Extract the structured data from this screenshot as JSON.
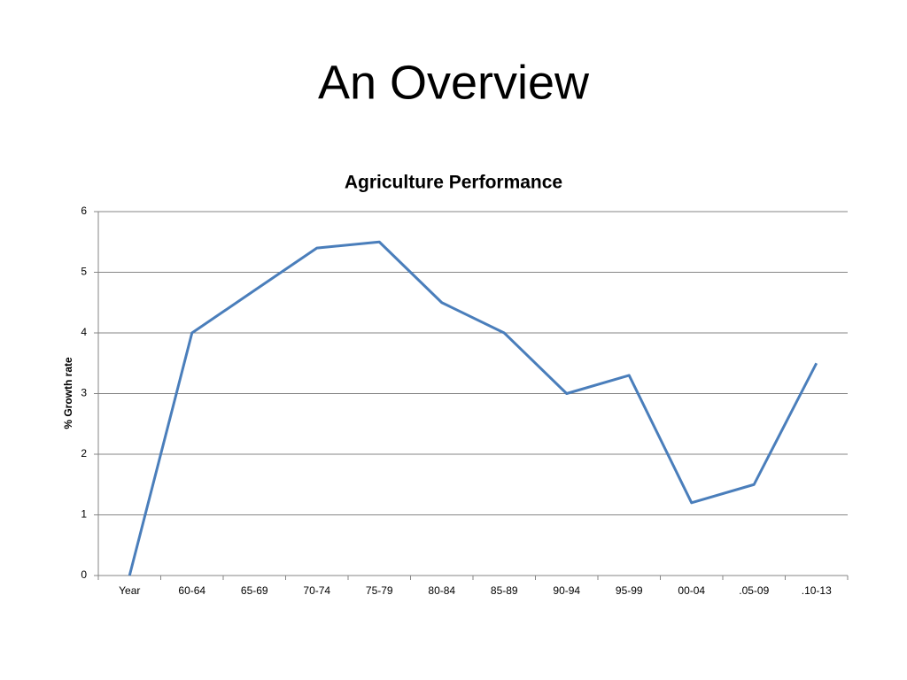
{
  "title": "An Overview",
  "chart_data": {
    "type": "line",
    "title": "Agriculture Performance",
    "y_label": "% Growth rate",
    "categories": [
      "Year",
      "60-64",
      "65-69",
      "70-74",
      "75-79",
      "80-84",
      "85-89",
      "90-94",
      "95-99",
      "00-04",
      ".05-09",
      ".10-13"
    ],
    "series": [
      {
        "name": "% Growth rate",
        "color": "#4a7ebb",
        "values": [
          0,
          4,
          4.7,
          5.4,
          5.5,
          4.5,
          4,
          3,
          3.3,
          1.2,
          1.5,
          3.5
        ]
      }
    ],
    "ylim": [
      0,
      6
    ],
    "yticks": [
      0,
      1,
      2,
      3,
      4,
      5,
      6
    ],
    "grid": true
  }
}
